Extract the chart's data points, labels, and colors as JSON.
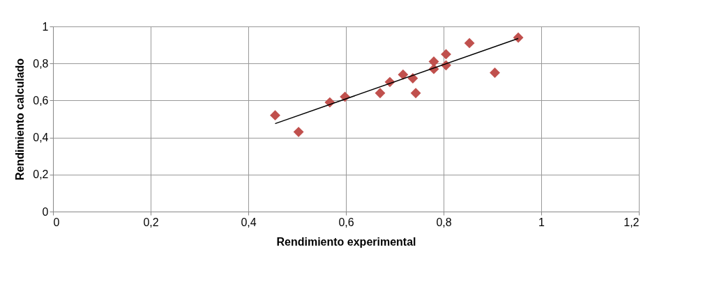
{
  "chart_data": {
    "type": "scatter",
    "xlabel": "Rendimiento experimental",
    "ylabel": "Rendimiento calculado",
    "xlim": [
      0,
      1.2
    ],
    "ylim": [
      0,
      1
    ],
    "xticks": [
      {
        "value": 0,
        "label": "0"
      },
      {
        "value": 0.2,
        "label": "0,2"
      },
      {
        "value": 0.4,
        "label": "0,4"
      },
      {
        "value": 0.6,
        "label": "0,6"
      },
      {
        "value": 0.8,
        "label": "0,8"
      },
      {
        "value": 1,
        "label": "1"
      },
      {
        "value": 1.2,
        "label": "1,2"
      }
    ],
    "yticks": [
      {
        "value": 0,
        "label": "0"
      },
      {
        "value": 0.2,
        "label": "0,2"
      },
      {
        "value": 0.4,
        "label": "0,4"
      },
      {
        "value": 0.6,
        "label": "0,6"
      },
      {
        "value": 0.8,
        "label": "0,8"
      },
      {
        "value": 1,
        "label": "1"
      }
    ],
    "grid": true,
    "series": [
      {
        "marker": "diamond",
        "color": "#c0504d",
        "x": [
          0.455,
          0.503,
          0.567,
          0.598,
          0.67,
          0.69,
          0.717,
          0.737,
          0.743,
          0.78,
          0.78,
          0.805,
          0.805,
          0.853,
          0.905,
          0.953
        ],
        "values": [
          0.52,
          0.43,
          0.59,
          0.62,
          0.64,
          0.7,
          0.74,
          0.72,
          0.64,
          0.77,
          0.81,
          0.79,
          0.85,
          0.91,
          0.75,
          0.94
        ]
      },
      {
        "type": "line",
        "marker": "none",
        "color": "#000000",
        "x": [
          0.455,
          0.953
        ],
        "values": [
          0.475,
          0.935
        ]
      }
    ]
  }
}
